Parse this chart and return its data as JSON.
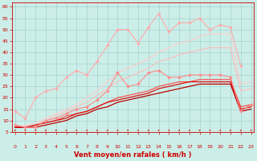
{
  "bg_color": "#cceee8",
  "xlabel": "Vent moyen/en rafales ( km/h )",
  "xlim": [
    -0.3,
    23.3
  ],
  "ylim": [
    5,
    62
  ],
  "yticks": [
    5,
    10,
    15,
    20,
    25,
    30,
    35,
    40,
    45,
    50,
    55,
    60
  ],
  "xticks": [
    0,
    1,
    2,
    3,
    4,
    5,
    6,
    7,
    8,
    9,
    10,
    11,
    12,
    13,
    14,
    15,
    16,
    17,
    18,
    19,
    20,
    21,
    22,
    23
  ],
  "grid_color": "#99cccc",
  "lines": [
    {
      "color": "#ffaaaa",
      "lw": 0.8,
      "marker": "D",
      "ms": 2.0,
      "y": [
        14,
        11,
        20,
        23,
        24,
        29,
        32,
        30,
        36,
        43,
        50,
        50,
        44,
        51,
        57,
        49,
        53,
        53,
        55,
        50,
        52,
        51,
        34,
        null
      ]
    },
    {
      "color": "#ff8888",
      "lw": 0.8,
      "marker": "D",
      "ms": 2.0,
      "y": [
        8,
        7,
        7,
        10,
        11,
        13,
        15,
        16,
        19,
        23,
        31,
        25,
        26,
        31,
        32,
        29,
        29,
        30,
        30,
        30,
        30,
        29,
        14,
        17
      ]
    },
    {
      "color": "#ffcccc",
      "lw": 0.8,
      "marker": null,
      "y": [
        7,
        8,
        9,
        11,
        13,
        15,
        17,
        20,
        23,
        27,
        31,
        33,
        35,
        37,
        40,
        42,
        44,
        45,
        47,
        48,
        48,
        48,
        26,
        27
      ]
    },
    {
      "color": "#ffbbbb",
      "lw": 0.8,
      "marker": null,
      "y": [
        7,
        7,
        8,
        10,
        12,
        14,
        16,
        18,
        21,
        24,
        27,
        29,
        31,
        33,
        36,
        37,
        39,
        40,
        41,
        42,
        42,
        42,
        23,
        24
      ]
    },
    {
      "color": "#ff4444",
      "lw": 0.8,
      "marker": null,
      "y": [
        7,
        7,
        8,
        9,
        10,
        12,
        13,
        14,
        16,
        18,
        20,
        21,
        22,
        23,
        25,
        26,
        27,
        27,
        28,
        28,
        28,
        28,
        16,
        17
      ]
    },
    {
      "color": "#dd1111",
      "lw": 0.9,
      "marker": null,
      "y": [
        7,
        7,
        8,
        9,
        10,
        11,
        13,
        14,
        16,
        18,
        19,
        20,
        21,
        22,
        24,
        25,
        26,
        27,
        27,
        27,
        27,
        27,
        15,
        16
      ]
    },
    {
      "color": "#bb0000",
      "lw": 0.9,
      "marker": null,
      "y": [
        7,
        7,
        7,
        8,
        9,
        10,
        12,
        13,
        15,
        16,
        18,
        19,
        20,
        21,
        22,
        23,
        24,
        25,
        26,
        26,
        26,
        26,
        14,
        15
      ]
    },
    {
      "color": "#cc0000",
      "lw": 0.8,
      "marker": "D",
      "ms": 1.8,
      "y": [
        null,
        null,
        null,
        null,
        null,
        null,
        null,
        null,
        null,
        null,
        null,
        null,
        null,
        null,
        null,
        null,
        null,
        null,
        null,
        null,
        null,
        null,
        null,
        null
      ]
    }
  ],
  "xlabel_fontsize": 6,
  "tick_fontsize": 4.5,
  "arrow_color": "#cc0000"
}
